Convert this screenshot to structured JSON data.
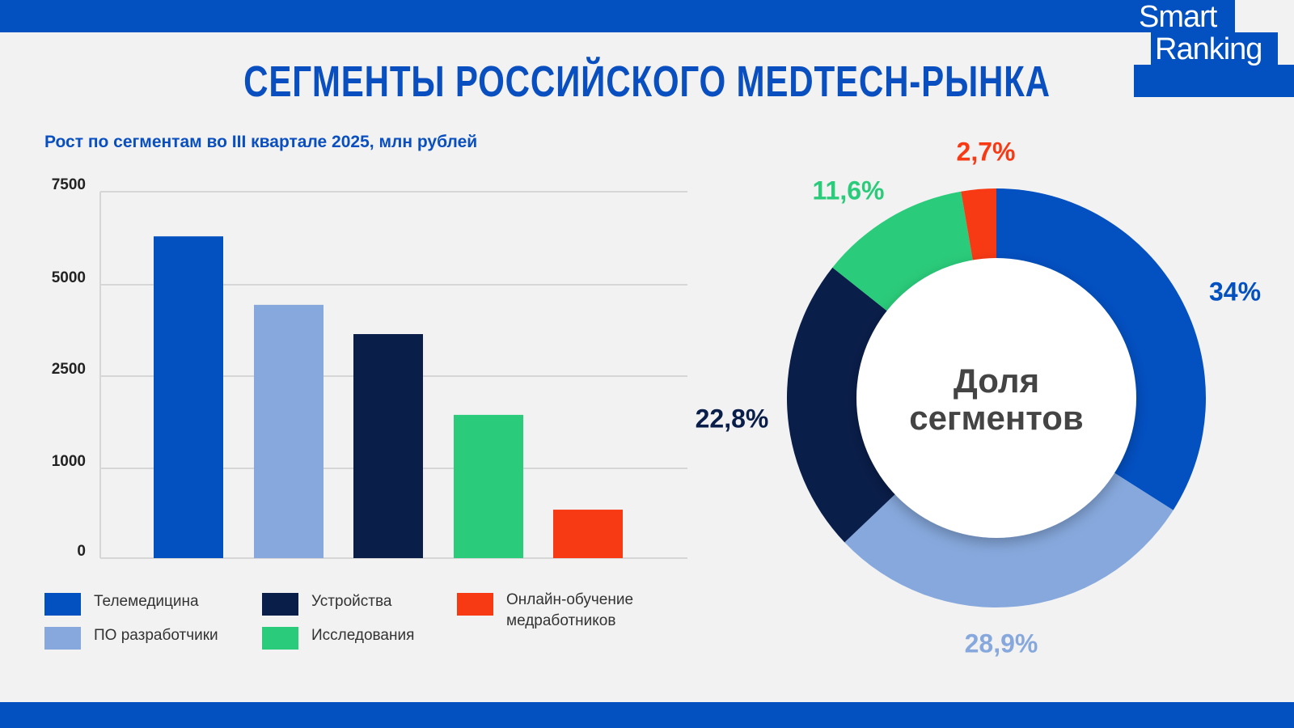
{
  "logo": {
    "line1": "Smart",
    "line2": "Ranking"
  },
  "title": "СЕГМЕНТЫ РОССИЙСКОГО MEDTECH-РЫНКА",
  "colors": {
    "brand": "#0350c1"
  },
  "chart_data": [
    {
      "type": "bar",
      "title": "Рост по сегментам во III квартале 2025, млн рублей",
      "categories": [
        "Телемедицина",
        "ПО разработчики",
        "Устройства",
        "Исследования",
        "Онлайн-обучение медработников"
      ],
      "values": [
        6300,
        4450,
        3650,
        1870,
        540
      ],
      "colors": [
        "#0350c1",
        "#86a8dc",
        "#0a1e4a",
        "#2acb7a",
        "#f73a14"
      ],
      "yticks": [
        0,
        1000,
        2500,
        5000,
        7500
      ],
      "ytick_labels": [
        "0",
        "1000",
        "2500",
        "5000",
        "7500"
      ],
      "ylim": [
        0,
        7500
      ],
      "grid": true,
      "legend": [
        {
          "label": "Телемедицина",
          "color": "#0350c1"
        },
        {
          "label": "ПО разработчики",
          "color": "#86a8dc"
        },
        {
          "label": "Устройства",
          "color": "#0a1e4a"
        },
        {
          "label": "Исследования",
          "color": "#2acb7a"
        },
        {
          "label": "Онлайн-обучение медработников",
          "color": "#f73a14"
        }
      ],
      "legend_placement": "bottom"
    },
    {
      "type": "pie",
      "title": "Доля сегментов",
      "title_lines": [
        "Доля",
        "сегментов"
      ],
      "categories": [
        "Телемедицина",
        "ПО разработчики",
        "Устройства",
        "Исследования",
        "Онлайн-обучение медработников"
      ],
      "values": [
        34,
        28.9,
        22.8,
        11.6,
        2.7
      ],
      "labels": [
        "34%",
        "28,9%",
        "22,8%",
        "11,6%",
        "2,7%"
      ],
      "colors": [
        "#0350c1",
        "#86a8dc",
        "#0a1e4a",
        "#2acb7a",
        "#f73a14"
      ]
    }
  ]
}
